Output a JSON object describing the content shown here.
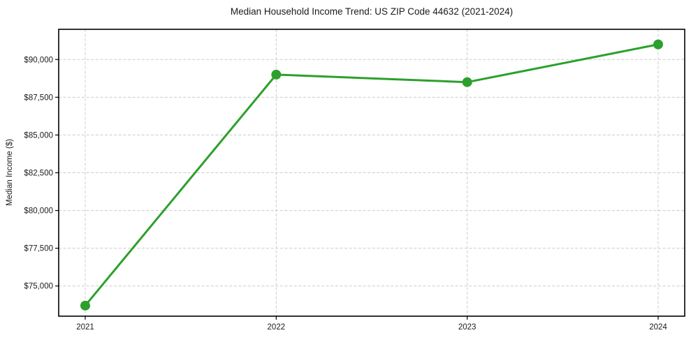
{
  "chart_data": {
    "type": "line",
    "title": "Median Household Income Trend: US ZIP Code 44632 (2021-2024)",
    "xlabel": "",
    "ylabel": "Median Income ($)",
    "categories": [
      "2021",
      "2022",
      "2023",
      "2024"
    ],
    "values": [
      73700,
      89000,
      88500,
      91000
    ],
    "ylim": [
      73000,
      92000
    ],
    "yticks": [
      {
        "value": 75000,
        "label": "$75,000"
      },
      {
        "value": 77500,
        "label": "$77,500"
      },
      {
        "value": 80000,
        "label": "$80,000"
      },
      {
        "value": 82500,
        "label": "$82,500"
      },
      {
        "value": 85000,
        "label": "$85,000"
      },
      {
        "value": 87500,
        "label": "$87,500"
      },
      {
        "value": 90000,
        "label": "$90,000"
      }
    ],
    "grid": true,
    "grid_style": "dashed",
    "grid_color": "#cccccc",
    "axis_color": "#000000",
    "text_color": "#1a1a1a",
    "line_color": "#2ca02c",
    "marker": "circle",
    "legend_position": "none",
    "background": "#ffffff"
  }
}
